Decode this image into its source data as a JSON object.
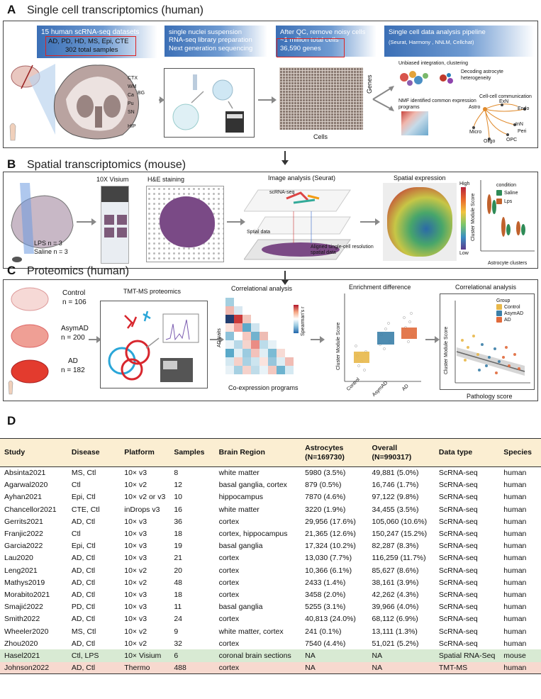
{
  "panelA": {
    "letter": "A",
    "title": "Single cell transcriptomics (human)",
    "datasets_title": "15 human scRNA-seq datasets",
    "datasets_line1": "AD, PD, HD, MS, Epi, CTE",
    "datasets_line2": "302 total  samples",
    "regions": [
      "CTX",
      "WM",
      "Ca",
      "Pu",
      "SN",
      "HIP"
    ],
    "bg_label": "BG",
    "step2_lines": [
      "single nuclei suspension",
      "RNA-seq library preparation",
      "Next generation sequencing"
    ],
    "step3_lines": [
      "After QC,  remove noisy cells",
      "~1 million total cells",
      "36,590 genes"
    ],
    "genes_label": "Genes",
    "cells_label": "Cells",
    "step4_title": "Single cell data analysis pipeline",
    "step4_tools": "(Seurat, Harmony , NNLM, Cellchat)",
    "integration_label": "Unbiased integration, clustering",
    "decoding_label": "Decoding astrocyte heterogeneity",
    "nmf_label": "NMF identified common expression programs",
    "comm_label": "Cell-cell communication",
    "cell_types": [
      "Astro",
      "ExN",
      "Endo",
      "InN",
      "Peri",
      "OPC",
      "Oligo",
      "Micro"
    ]
  },
  "panelB": {
    "letter": "B",
    "title": "Spatial transcriptomics  (mouse)",
    "lps": "LPS n = 3",
    "saline": "Saline n = 3",
    "visium": "10X Visium",
    "he": "H&E staining",
    "image_analysis": "Image analysis (Seurat)",
    "scrna": "scRNA-seq",
    "spatial_data": "Sptial data",
    "aligned": "Aligned single-cell resolution spatial data",
    "spatial_expr": "Spatial expression",
    "high": "High",
    "low": "Low",
    "condition": "condition",
    "cond_saline": "Saline",
    "cond_lps": "Lps",
    "y_label": "Cluster Module Score",
    "x_label": "Astrocyte clusters",
    "colors": {
      "saline": "#2e8b57",
      "lps": "#c0622d"
    }
  },
  "panelC": {
    "letter": "C",
    "title": "Proteomics  (human)",
    "control": "Control",
    "control_n": "n = 106",
    "asymad": "AsymAD",
    "asymad_n": "n = 200",
    "ad": "AD",
    "ad_n": "n = 182",
    "tmt": "TMT-MS proteomics",
    "corr_title": "Correlational analysis",
    "ad_traits": "AD traits",
    "coexpr": "Co-expression programs",
    "spearman": "Spearman's r",
    "enrich_title": "Enrichment difference",
    "enrich_ylabel": "Cluster Module Score",
    "enrich_cats": [
      "Control",
      "AsymAD",
      "AD"
    ],
    "corr2_title": "Correlational analysis",
    "group": "Group",
    "groups": [
      "Control",
      "AsymAD",
      "AD"
    ],
    "corr2_ylabel": "Cluster Module Score",
    "corr2_xlabel": "Pathology score",
    "group_colors": [
      "#e8b84a",
      "#3b7fa8",
      "#e06a3b"
    ]
  },
  "panelD": {
    "letter": "D",
    "headers": [
      "Study",
      "Disease",
      "Platform",
      "Samples",
      "Brain Region",
      "Astrocytes (N=169730)",
      "Overall (N=990317)",
      "Data type",
      "Species"
    ],
    "rows": [
      [
        "Absinta2021",
        "MS, Ctl",
        "10× v3",
        "8",
        "white matter",
        "5980 (3.5%)",
        "49,881 (5.0%)",
        "ScRNA-seq",
        "human"
      ],
      [
        "Agarwal2020",
        "Ctl",
        "10× v2",
        "12",
        "basal ganglia, cortex",
        "879 (0.5%)",
        "16,746 (1.7%)",
        "ScRNA-seq",
        "human"
      ],
      [
        "Ayhan2021",
        "Epi, Ctl",
        "10× v2 or v3",
        "10",
        "hippocampus",
        "7870 (4.6%)",
        "97,122 (9.8%)",
        "ScRNA-seq",
        "human"
      ],
      [
        "Chancellor2021",
        "CTE, Ctl",
        "inDrops v3",
        "16",
        "white matter",
        "3220 (1.9%)",
        "34,455 (3.5%)",
        "ScRNA-seq",
        "human"
      ],
      [
        "Gerrits2021",
        "AD, Ctl",
        "10× v3",
        "36",
        "cortex",
        "29,956 (17.6%)",
        "105,060 (10.6%)",
        "ScRNA-seq",
        "human"
      ],
      [
        "Franjic2022",
        "Ctl",
        "10× v3",
        "18",
        "cortex, hippocampus",
        "21,365 (12.6%)",
        "150,247 (15.2%)",
        "ScRNA-seq",
        "human"
      ],
      [
        "Garcia2022",
        "Epi, Ctl",
        "10× v3",
        "19",
        "basal ganglia",
        "17,324 (10.2%)",
        "82,287 (8.3%)",
        "ScRNA-seq",
        "human"
      ],
      [
        "Lau2020",
        "AD, Ctl",
        "10× v3",
        "21",
        "cortex",
        "13,030 (7.7%)",
        "116,259 (11.7%)",
        "ScRNA-seq",
        "human"
      ],
      [
        "Leng2021",
        "AD, Ctl",
        "10× v2",
        "20",
        "cortex",
        "10,366 (6.1%)",
        "85,627 (8.6%)",
        "ScRNA-seq",
        "human"
      ],
      [
        "Mathys2019",
        "AD, Ctl",
        "10× v2",
        "48",
        "cortex",
        "2433 (1.4%)",
        "38,161 (3.9%)",
        "ScRNA-seq",
        "human"
      ],
      [
        "Morabito2021",
        "AD, Ctl",
        "10× v3",
        "18",
        "cortex",
        "3458 (2.0%)",
        "42,262 (4.3%)",
        "ScRNA-seq",
        "human"
      ],
      [
        "Smajić2022",
        "PD, Ctl",
        "10× v3",
        "11",
        "basal ganglia",
        "5255 (3.1%)",
        "39,966 (4.0%)",
        "ScRNA-seq",
        "human"
      ],
      [
        "Smith2022",
        "AD, Ctl",
        "10× v3",
        "24",
        "cortex",
        "40,813 (24.0%)",
        "68,112 (6.9%)",
        "ScRNA-seq",
        "human"
      ],
      [
        "Wheeler2020",
        "MS, Ctl",
        "10× v2",
        "9",
        "white matter, cortex",
        "241 (0.1%)",
        "13,111 (1.3%)",
        "ScRNA-seq",
        "human"
      ],
      [
        "Zhou2020",
        "AD, Ctl",
        "10× v2",
        "32",
        "cortex",
        "7540 (4.4%)",
        "51,021 (5.2%)",
        "ScRNA-seq",
        "human"
      ],
      [
        "Hasel2021",
        "Ctl, LPS",
        "10× Visium",
        "6",
        "coronal brain sections",
        "NA",
        "NA",
        "Spatial RNA-Seq",
        "mouse"
      ],
      [
        "Johnson2022",
        "AD, Ctl",
        "Thermo",
        "488",
        "cortex",
        "NA",
        "NA",
        "TMT-MS",
        "human"
      ]
    ]
  }
}
